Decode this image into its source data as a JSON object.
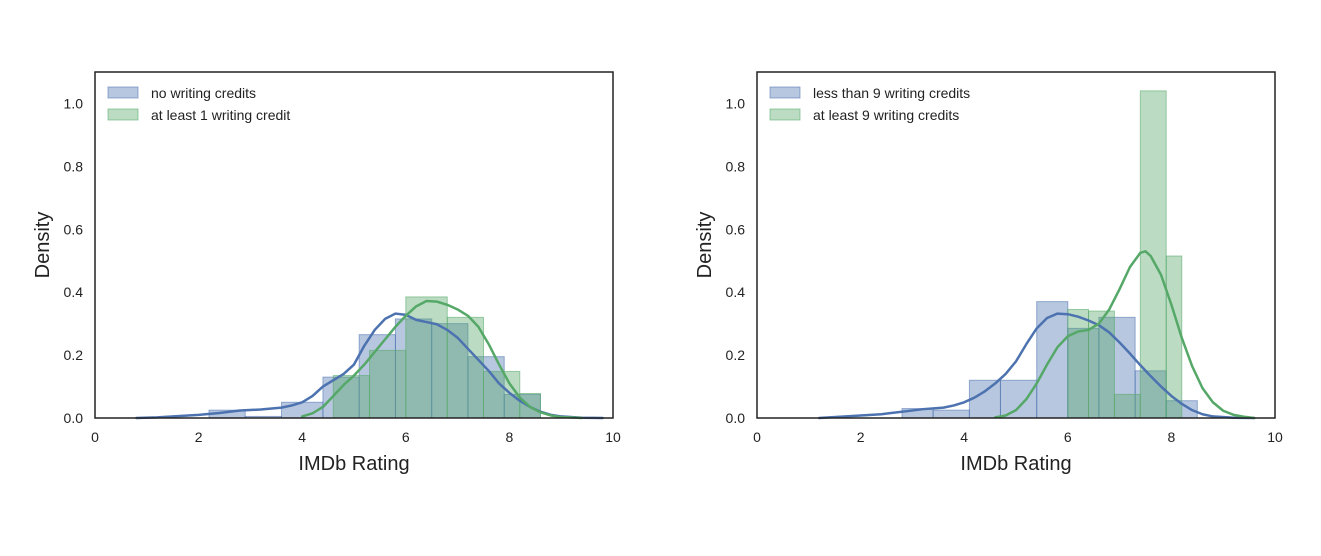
{
  "chart_data": [
    {
      "type": "histogram",
      "xlabel": "IMDb Rating",
      "ylabel": "Density",
      "xlim": [
        0,
        10
      ],
      "ylim": [
        0,
        1.1
      ],
      "xticks": [
        "0",
        "2",
        "4",
        "6",
        "8",
        "10"
      ],
      "yticks": [
        "0.0",
        "0.2",
        "0.4",
        "0.6",
        "0.8",
        "1.0"
      ],
      "grid": false,
      "legend_position": "top-left",
      "series": [
        {
          "name": "no writing credits",
          "color": "#4c72b0",
          "bins": [
            {
              "x0": 2.2,
              "x1": 2.9,
              "value": 0.025
            },
            {
              "x0": 2.9,
              "x1": 3.6,
              "value": 0.005
            },
            {
              "x0": 3.6,
              "x1": 4.4,
              "value": 0.05
            },
            {
              "x0": 4.4,
              "x1": 5.1,
              "value": 0.13
            },
            {
              "x0": 5.1,
              "x1": 5.8,
              "value": 0.265
            },
            {
              "x0": 5.8,
              "x1": 6.5,
              "value": 0.315
            },
            {
              "x0": 6.5,
              "x1": 7.2,
              "value": 0.3
            },
            {
              "x0": 7.2,
              "x1": 7.9,
              "value": 0.195
            },
            {
              "x0": 7.9,
              "x1": 8.6,
              "value": 0.075
            }
          ],
          "kde": [
            [
              0.8,
              0
            ],
            [
              1.2,
              0.002
            ],
            [
              1.6,
              0.006
            ],
            [
              2.0,
              0.01
            ],
            [
              2.4,
              0.016
            ],
            [
              2.8,
              0.024
            ],
            [
              3.2,
              0.027
            ],
            [
              3.6,
              0.033
            ],
            [
              3.8,
              0.04
            ],
            [
              4.0,
              0.05
            ],
            [
              4.2,
              0.07
            ],
            [
              4.4,
              0.1
            ],
            [
              4.6,
              0.12
            ],
            [
              4.8,
              0.14
            ],
            [
              5.0,
              0.17
            ],
            [
              5.2,
              0.23
            ],
            [
              5.4,
              0.28
            ],
            [
              5.6,
              0.315
            ],
            [
              5.8,
              0.332
            ],
            [
              6.0,
              0.328
            ],
            [
              6.2,
              0.312
            ],
            [
              6.4,
              0.305
            ],
            [
              6.6,
              0.298
            ],
            [
              6.8,
              0.28
            ],
            [
              7.0,
              0.255
            ],
            [
              7.2,
              0.22
            ],
            [
              7.4,
              0.185
            ],
            [
              7.6,
              0.15
            ],
            [
              7.8,
              0.11
            ],
            [
              8.0,
              0.08
            ],
            [
              8.2,
              0.055
            ],
            [
              8.4,
              0.035
            ],
            [
              8.6,
              0.02
            ],
            [
              8.8,
              0.01
            ],
            [
              9.0,
              0.005
            ],
            [
              9.4,
              0.001
            ],
            [
              9.8,
              0
            ]
          ]
        },
        {
          "name": "at least 1 writing credit",
          "color": "#55a868",
          "bins": [
            {
              "x0": 4.6,
              "x1": 5.3,
              "value": 0.135
            },
            {
              "x0": 5.3,
              "x1": 6.0,
              "value": 0.215
            },
            {
              "x0": 6.0,
              "x1": 6.8,
              "value": 0.385
            },
            {
              "x0": 6.8,
              "x1": 7.5,
              "value": 0.32
            },
            {
              "x0": 7.5,
              "x1": 8.2,
              "value": 0.148
            },
            {
              "x0": 8.2,
              "x1": 8.6,
              "value": 0.078
            }
          ],
          "kde": [
            [
              4.0,
              0.005
            ],
            [
              4.2,
              0.015
            ],
            [
              4.4,
              0.035
            ],
            [
              4.6,
              0.07
            ],
            [
              4.8,
              0.105
            ],
            [
              5.0,
              0.135
            ],
            [
              5.2,
              0.17
            ],
            [
              5.4,
              0.21
            ],
            [
              5.6,
              0.25
            ],
            [
              5.8,
              0.29
            ],
            [
              6.0,
              0.325
            ],
            [
              6.2,
              0.355
            ],
            [
              6.4,
              0.372
            ],
            [
              6.6,
              0.37
            ],
            [
              6.8,
              0.36
            ],
            [
              7.0,
              0.345
            ],
            [
              7.2,
              0.325
            ],
            [
              7.4,
              0.29
            ],
            [
              7.6,
              0.235
            ],
            [
              7.8,
              0.17
            ],
            [
              8.0,
              0.11
            ],
            [
              8.2,
              0.065
            ],
            [
              8.4,
              0.035
            ],
            [
              8.6,
              0.018
            ],
            [
              8.8,
              0.008
            ],
            [
              9.0,
              0.003
            ],
            [
              9.4,
              0
            ]
          ]
        }
      ]
    },
    {
      "type": "histogram",
      "xlabel": "IMDb Rating",
      "ylabel": "Density",
      "xlim": [
        0,
        10
      ],
      "ylim": [
        0,
        1.1
      ],
      "xticks": [
        "0",
        "2",
        "4",
        "6",
        "8",
        "10"
      ],
      "yticks": [
        "0.0",
        "0.2",
        "0.4",
        "0.6",
        "0.8",
        "1.0"
      ],
      "grid": false,
      "legend_position": "top-left",
      "series": [
        {
          "name": "less than 9 writing credits",
          "color": "#4c72b0",
          "bins": [
            {
              "x0": 2.8,
              "x1": 3.4,
              "value": 0.03
            },
            {
              "x0": 3.4,
              "x1": 4.1,
              "value": 0.025
            },
            {
              "x0": 4.1,
              "x1": 4.7,
              "value": 0.12
            },
            {
              "x0": 4.7,
              "x1": 5.4,
              "value": 0.12
            },
            {
              "x0": 5.4,
              "x1": 6.0,
              "value": 0.37
            },
            {
              "x0": 6.0,
              "x1": 6.6,
              "value": 0.285
            },
            {
              "x0": 6.6,
              "x1": 7.3,
              "value": 0.32
            },
            {
              "x0": 7.3,
              "x1": 7.9,
              "value": 0.15
            },
            {
              "x0": 7.9,
              "x1": 8.5,
              "value": 0.055
            }
          ],
          "kde": [
            [
              1.2,
              0
            ],
            [
              1.6,
              0.004
            ],
            [
              2.0,
              0.008
            ],
            [
              2.4,
              0.012
            ],
            [
              2.8,
              0.02
            ],
            [
              3.2,
              0.028
            ],
            [
              3.6,
              0.033
            ],
            [
              3.8,
              0.04
            ],
            [
              4.0,
              0.05
            ],
            [
              4.2,
              0.065
            ],
            [
              4.4,
              0.085
            ],
            [
              4.6,
              0.11
            ],
            [
              4.8,
              0.14
            ],
            [
              5.0,
              0.18
            ],
            [
              5.2,
              0.235
            ],
            [
              5.4,
              0.285
            ],
            [
              5.6,
              0.318
            ],
            [
              5.8,
              0.332
            ],
            [
              6.0,
              0.33
            ],
            [
              6.2,
              0.322
            ],
            [
              6.4,
              0.31
            ],
            [
              6.6,
              0.295
            ],
            [
              6.8,
              0.272
            ],
            [
              7.0,
              0.24
            ],
            [
              7.2,
              0.205
            ],
            [
              7.4,
              0.168
            ],
            [
              7.6,
              0.133
            ],
            [
              7.8,
              0.1
            ],
            [
              8.0,
              0.07
            ],
            [
              8.2,
              0.045
            ],
            [
              8.4,
              0.025
            ],
            [
              8.6,
              0.012
            ],
            [
              8.8,
              0.005
            ],
            [
              9.2,
              0.001
            ],
            [
              9.6,
              0
            ]
          ]
        },
        {
          "name": "at least 9 writing credits",
          "color": "#55a868",
          "bins": [
            {
              "x0": 5.4,
              "x1": 6.0,
              "value": 0.0
            },
            {
              "x0": 6.0,
              "x1": 6.4,
              "value": 0.345
            },
            {
              "x0": 6.4,
              "x1": 6.9,
              "value": 0.34
            },
            {
              "x0": 6.9,
              "x1": 7.4,
              "value": 0.075
            },
            {
              "x0": 7.4,
              "x1": 7.9,
              "value": 1.04
            },
            {
              "x0": 7.9,
              "x1": 8.2,
              "value": 0.515
            }
          ],
          "kde": [
            [
              4.6,
              0.002
            ],
            [
              4.8,
              0.008
            ],
            [
              5.0,
              0.025
            ],
            [
              5.2,
              0.06
            ],
            [
              5.4,
              0.11
            ],
            [
              5.6,
              0.17
            ],
            [
              5.8,
              0.225
            ],
            [
              6.0,
              0.26
            ],
            [
              6.2,
              0.275
            ],
            [
              6.4,
              0.28
            ],
            [
              6.6,
              0.3
            ],
            [
              6.8,
              0.345
            ],
            [
              7.0,
              0.41
            ],
            [
              7.2,
              0.48
            ],
            [
              7.4,
              0.525
            ],
            [
              7.5,
              0.53
            ],
            [
              7.6,
              0.515
            ],
            [
              7.8,
              0.455
            ],
            [
              8.0,
              0.36
            ],
            [
              8.2,
              0.255
            ],
            [
              8.4,
              0.165
            ],
            [
              8.6,
              0.095
            ],
            [
              8.8,
              0.05
            ],
            [
              9.0,
              0.023
            ],
            [
              9.2,
              0.01
            ],
            [
              9.4,
              0.004
            ],
            [
              9.6,
              0
            ]
          ]
        }
      ]
    }
  ]
}
